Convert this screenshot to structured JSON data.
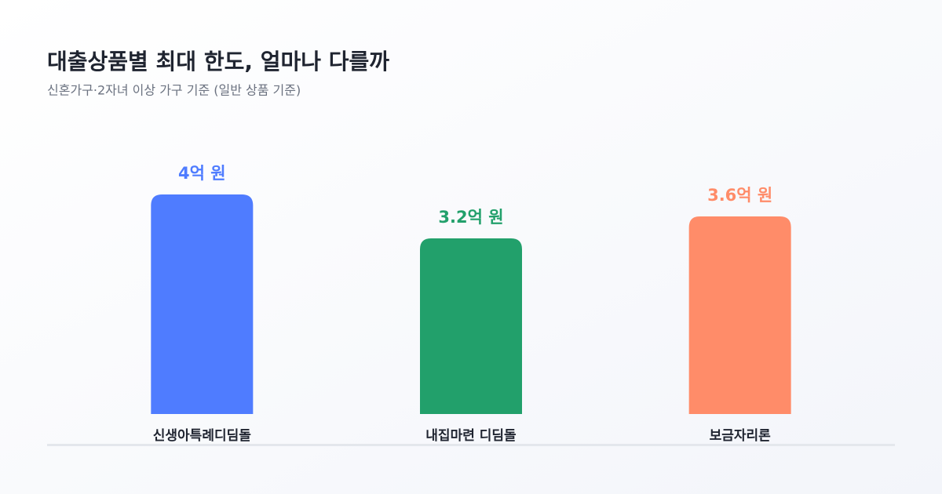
{
  "chart_data": {
    "type": "bar",
    "title": "대출상품별 최대 한도, 얼마나 다를까",
    "subtitle": "신혼가구·2자녀 이상 가구 기준 (일반 상품 기준)",
    "categories": [
      "신생아특례디딤돌",
      "내집마련 디딤돌",
      "보금자리론"
    ],
    "values": [
      4,
      3.2,
      3.6
    ],
    "value_labels": [
      "4억 원",
      "3.2억 원",
      "3.6억 원"
    ],
    "colors": [
      "#4f7cff",
      "#22a06b",
      "#ff8c69"
    ]
  }
}
